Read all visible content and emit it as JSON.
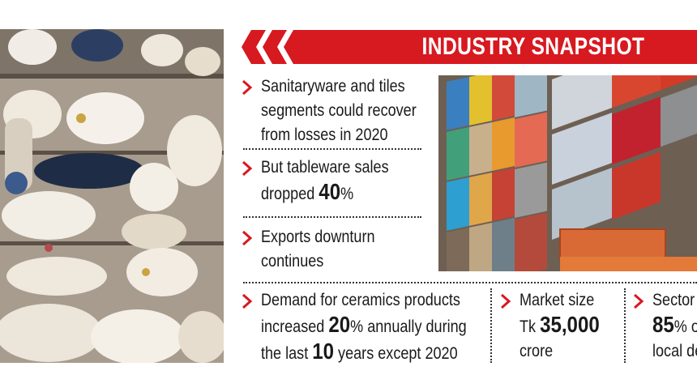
{
  "banner": {
    "title": "INDUSTRY SNAPSHOT"
  },
  "points": [
    {
      "lines": [
        "Sanitaryware and tiles",
        "segments could recover",
        "from losses in 2020"
      ]
    },
    {
      "line1": "But tableware sales",
      "line2_pre": "dropped ",
      "figure": "40",
      "unit": "%"
    },
    {
      "lines": [
        "Exports downturn",
        "continues"
      ]
    },
    {
      "line1": "Demand for ceramics products",
      "line2_pre": "increased ",
      "figure1": "20",
      "line2_post": "% annually during",
      "line3_pre": "the last ",
      "figure2": "10",
      "line3_post": " years except 2020"
    }
  ],
  "market": {
    "label": "Market size",
    "prefix": "Tk ",
    "value": "35,000",
    "unit": "crore"
  },
  "sector": {
    "label": "Sector",
    "value": "85",
    "unit": "% o",
    "line3": "local de"
  },
  "colors": {
    "accent": "#d71920",
    "text": "#1a1a1a",
    "background": "#ffffff"
  },
  "icons": {
    "bullet": "chevron-right-icon",
    "banner": "double-chevron-icon"
  }
}
